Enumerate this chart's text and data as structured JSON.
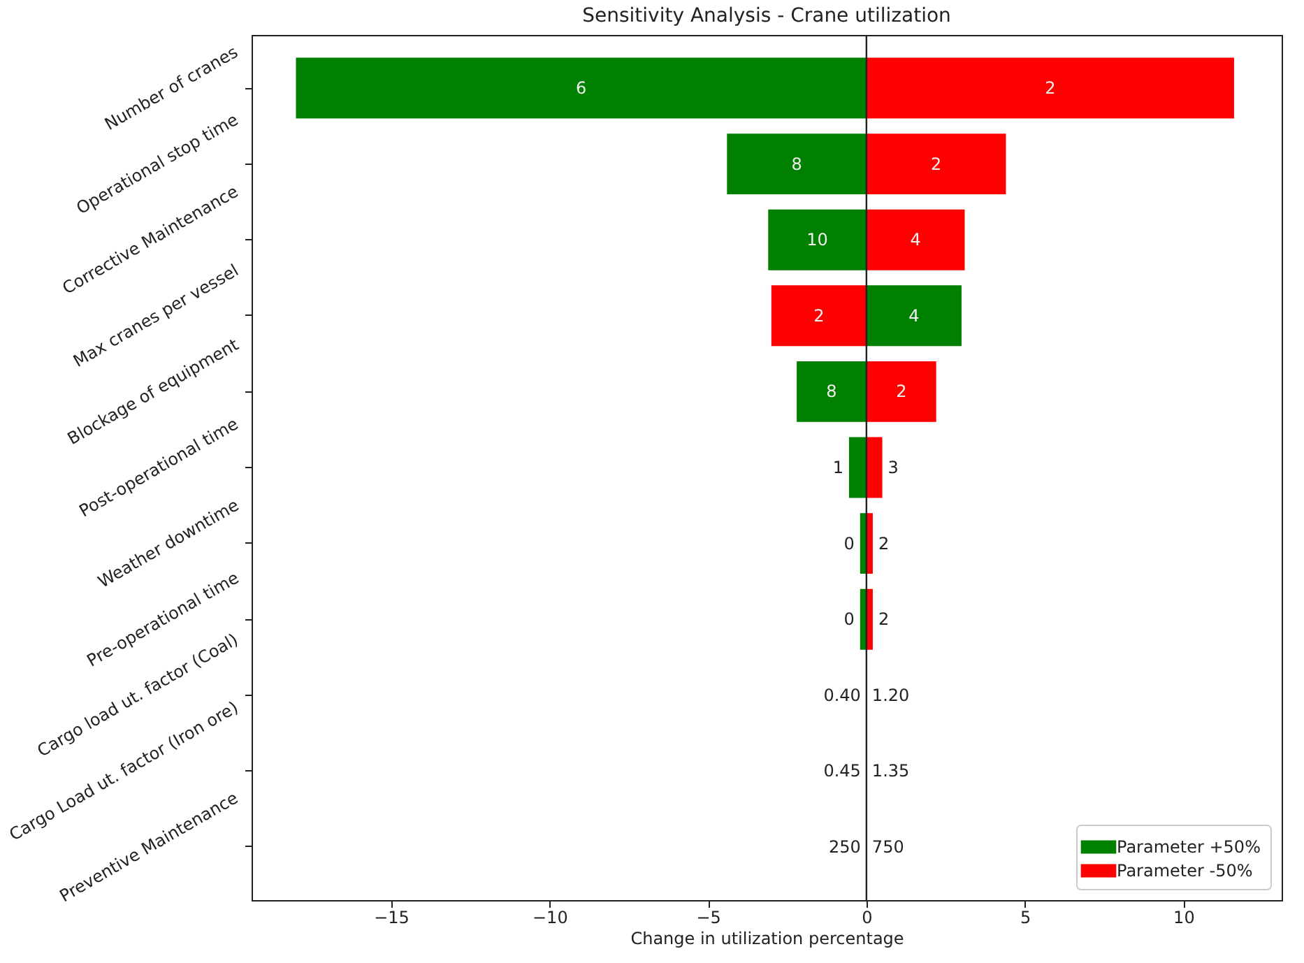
{
  "chart_data": {
    "type": "bar",
    "orientation": "horizontal",
    "title": "Sensitivity Analysis - Crane utilization",
    "xlabel": "Change in utilization percentage",
    "categories": [
      "Number of cranes",
      "Operational stop time",
      "Corrective Maintenance",
      "Max cranes per vessel",
      "Blockage of equipment",
      "Post-operational time",
      "Weather downtime",
      "Pre-operational time",
      "Cargo load ut. factor (Coal)",
      "Cargo Load ut. factor (Iron ore)",
      "Preventive Maintenance"
    ],
    "series": [
      {
        "name": "Parameter +50%",
        "color": "#008000",
        "values": [
          -18,
          -4.4,
          -3.1,
          3.0,
          -2.2,
          -0.55,
          -0.2,
          -0.2,
          0,
          0,
          0
        ]
      },
      {
        "name": "Parameter -50%",
        "color": "#ff0000",
        "values": [
          11.6,
          4.4,
          3.1,
          -3.0,
          2.2,
          0.5,
          0.2,
          0.2,
          0,
          0,
          0
        ]
      }
    ],
    "annotations": [
      "6",
      "2",
      "8",
      "2",
      "10",
      "4",
      "2",
      "4",
      "8",
      "2",
      "1",
      "3",
      "0",
      "2",
      "0",
      "2",
      "0.40",
      "1.20",
      "0.45",
      "1.35",
      "250",
      "750"
    ],
    "xlim": [
      -19.4,
      13.1
    ],
    "xticks": [
      {
        "value": -15,
        "label": "−15"
      },
      {
        "value": -10,
        "label": "−10"
      },
      {
        "value": -5,
        "label": "−5"
      },
      0,
      5,
      10
    ],
    "ref_lines": [
      {
        "axis": "x",
        "value": 0
      }
    ],
    "legend": "bottom right",
    "grid": false,
    "stacked": true
  }
}
